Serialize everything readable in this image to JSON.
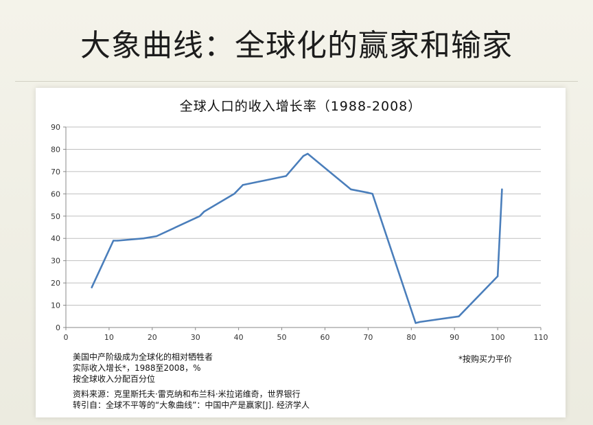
{
  "slide": {
    "title": "大象曲线：全球化的赢家和输家"
  },
  "notes": {
    "line1": "美国中产阶级成为全球化的相对牺牲者",
    "line2": "实际收入增长*，1988至2008，%",
    "line3": "按全球收入分配百分位",
    "line4": "资料来源：克里斯托夫·雷克纳和布兰科·米拉诺维奇，世界银行",
    "line5": "转引自：全球不平等的“大象曲线”：中国中产是赢家[J]. 经济学人",
    "footnote": "*按购买力平价"
  },
  "chart_data": {
    "type": "line",
    "title": "全球人口的收入增长率（1988-2008）",
    "xlabel": "",
    "ylabel": "",
    "xlim": [
      0,
      110
    ],
    "ylim": [
      0,
      90
    ],
    "xticks": [
      0,
      10,
      20,
      30,
      40,
      50,
      60,
      70,
      80,
      90,
      100,
      110
    ],
    "yticks": [
      0,
      10,
      20,
      30,
      40,
      50,
      60,
      70,
      80,
      90
    ],
    "grid": true,
    "legend": "none",
    "series": [
      {
        "color": "#4a7ebb",
        "x": [
          6,
          11,
          12,
          18,
          21,
          31,
          32,
          39,
          41,
          51,
          55,
          56,
          66,
          70,
          71,
          81,
          82,
          91,
          100,
          101
        ],
        "y": [
          18,
          39,
          39,
          40,
          41,
          50,
          52,
          60,
          64,
          68,
          77,
          78,
          62,
          60.5,
          60,
          2,
          2.5,
          5,
          23,
          62
        ]
      }
    ]
  }
}
